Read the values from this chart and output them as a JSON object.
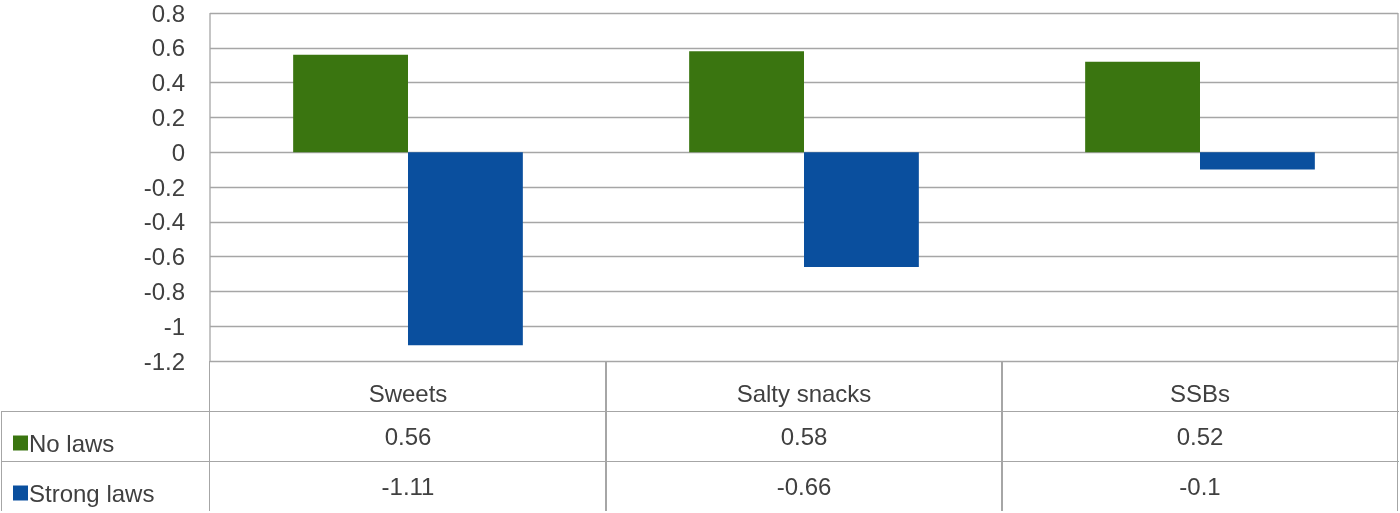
{
  "chart_data": {
    "type": "bar",
    "categories": [
      "Sweets",
      "Salty snacks",
      "SSBs"
    ],
    "series": [
      {
        "name": "No laws",
        "color": "#3a7510",
        "values": [
          0.56,
          0.58,
          0.52
        ]
      },
      {
        "name": "Strong laws",
        "color": "#0a4f9e",
        "values": [
          -1.11,
          -0.66,
          -0.1
        ]
      }
    ],
    "ylim": [
      -1.2,
      0.8
    ],
    "yticks": [
      0.8,
      0.6,
      0.4,
      0.2,
      0,
      -0.2,
      -0.4,
      -0.6,
      -0.8,
      -1,
      -1.2
    ],
    "grid": "y",
    "legend": "bottom left",
    "data_labels": true
  }
}
